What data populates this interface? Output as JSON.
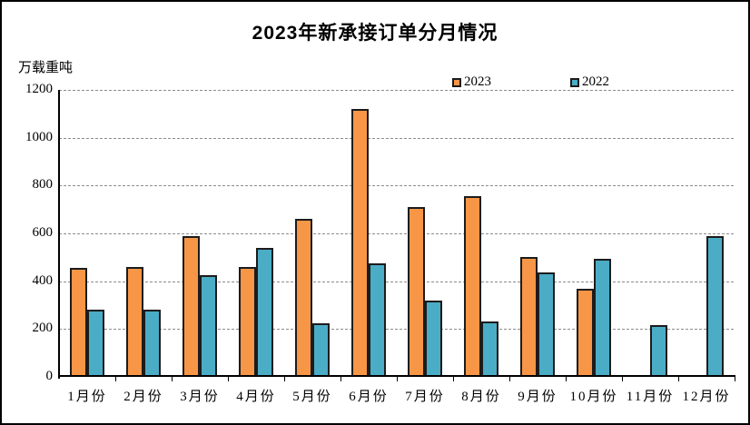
{
  "title": "2023年新承接订单分月情况",
  "y_axis_unit": "万载重吨",
  "legend": [
    {
      "label": "2023",
      "color": "#F79646"
    },
    {
      "label": "2022",
      "color": "#4BACC6"
    }
  ],
  "colors": {
    "series_2023": "#F79646",
    "series_2022": "#4BACC6",
    "bar_border": "#1c1c1c",
    "gridline": "#8c8c8c",
    "axis": "#000000",
    "background": "#ffffff"
  },
  "chart_data": {
    "type": "bar",
    "title": "2023年新承接订单分月情况",
    "ylabel": "万载重吨",
    "xlabel": "",
    "categories": [
      "1月份",
      "2月份",
      "3月份",
      "4月份",
      "5月份",
      "6月份",
      "7月份",
      "8月份",
      "9月份",
      "10月份",
      "11月份",
      "12月份"
    ],
    "series": [
      {
        "name": "2023",
        "color": "#F79646",
        "values": [
          455,
          460,
          590,
          460,
          660,
          1120,
          710,
          755,
          500,
          370,
          null,
          null
        ]
      },
      {
        "name": "2022",
        "color": "#4BACC6",
        "values": [
          280,
          280,
          425,
          540,
          225,
          475,
          320,
          230,
          435,
          495,
          215,
          590
        ]
      }
    ],
    "ylim": [
      0,
      1200
    ],
    "yticks": [
      0,
      200,
      400,
      600,
      800,
      1000,
      1200
    ],
    "grid": true,
    "gridline_style": "dashed",
    "legend_position": "top-inside"
  }
}
